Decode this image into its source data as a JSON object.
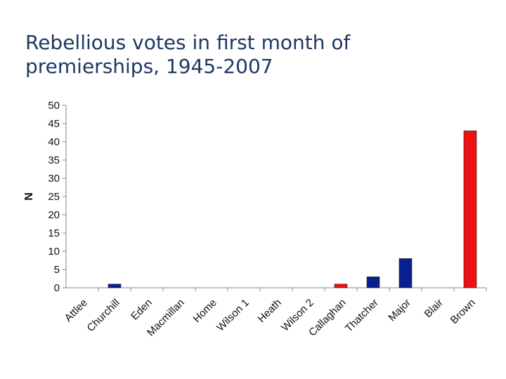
{
  "slide": {
    "title": "Rebellious votes in first month of premierships, 1945-2007"
  },
  "chart_data": {
    "type": "bar",
    "title": "Rebellious votes in first month of premierships, 1945-2007",
    "xlabel": "",
    "ylabel": "N",
    "ylim": [
      0,
      50
    ],
    "yticks": [
      0,
      5,
      10,
      15,
      20,
      25,
      30,
      35,
      40,
      45,
      50
    ],
    "grid": false,
    "legend": "none",
    "categories": [
      "Attlee",
      "Churchill",
      "Eden",
      "Macmillan",
      "Home",
      "Wilson 1",
      "Heath",
      "Wilson 2",
      "Callaghan",
      "Thatcher",
      "Major",
      "Blair",
      "Brown"
    ],
    "values": [
      0,
      1,
      0,
      0,
      0,
      0,
      0,
      0,
      1,
      3,
      8,
      0,
      43
    ],
    "bar_colors": [
      "#0a1f8f",
      "#0a1f8f",
      "#0a1f8f",
      "#0a1f8f",
      "#0a1f8f",
      "#ee1111",
      "#0a1f8f",
      "#ee1111",
      "#ee1111",
      "#0a1f8f",
      "#0a1f8f",
      "#ee1111",
      "#ee1111"
    ],
    "colors": {
      "conservative": "#0a1f8f",
      "labour": "#ee1111",
      "axis": "#888888"
    }
  }
}
